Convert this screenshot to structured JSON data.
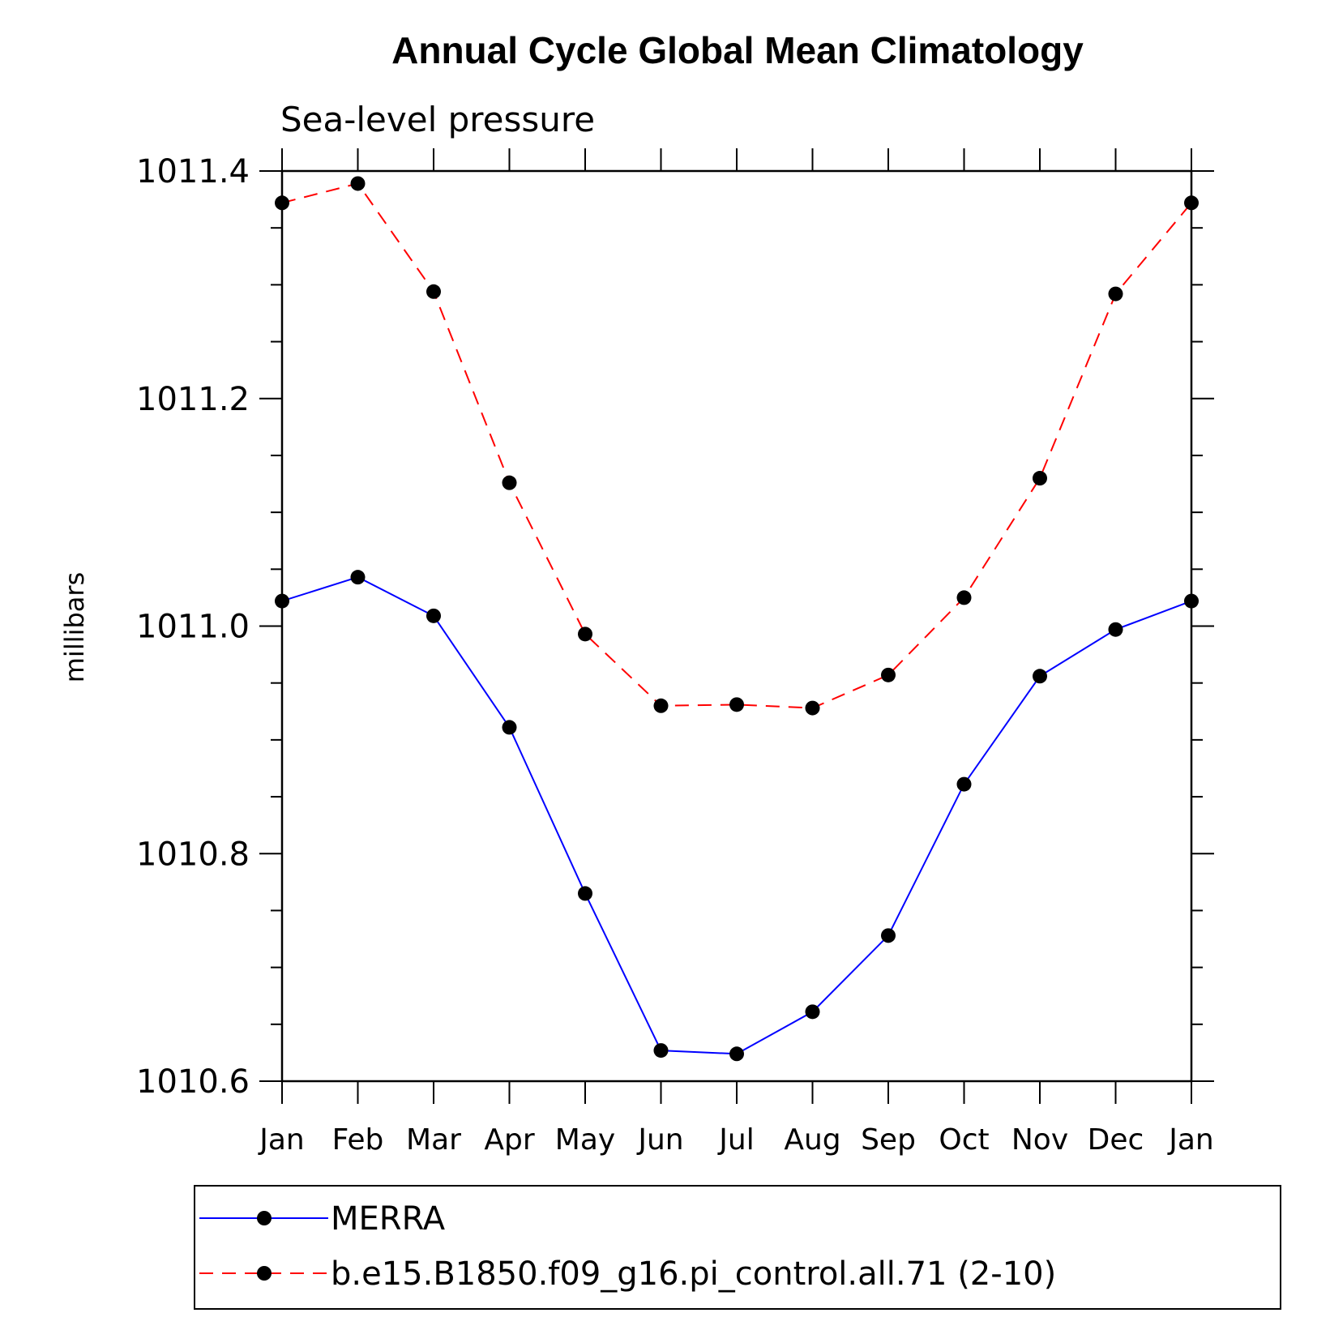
{
  "chart_data": {
    "type": "line",
    "title": "Annual Cycle Global Mean Climatology",
    "subtitle": "Sea-level pressure",
    "xlabel": "",
    "ylabel": "millibars",
    "categories": [
      "Jan",
      "Feb",
      "Mar",
      "Apr",
      "May",
      "Jun",
      "Jul",
      "Aug",
      "Sep",
      "Oct",
      "Nov",
      "Dec",
      "Jan"
    ],
    "ylim": [
      1010.6,
      1011.4
    ],
    "yticks": [
      "1010.6",
      "1010.8",
      "1011.0",
      "1011.2",
      "1011.4"
    ],
    "grid": false,
    "legend_position": "bottom",
    "series": [
      {
        "name": "MERRA",
        "color": "#0000ff",
        "line_style": "solid",
        "marker": "filled-circle",
        "values": [
          1011.022,
          1011.043,
          1011.009,
          1010.911,
          1010.765,
          1010.627,
          1010.624,
          1010.661,
          1010.728,
          1010.861,
          1010.956,
          1010.997,
          1011.022
        ]
      },
      {
        "name": "b.e15.B1850.f09_g16.pi_control.all.71 (2-10)",
        "color": "#ff0000",
        "line_style": "dashed",
        "marker": "filled-circle",
        "values": [
          1011.372,
          1011.389,
          1011.294,
          1011.126,
          1010.993,
          1010.93,
          1010.931,
          1010.928,
          1010.957,
          1011.025,
          1011.13,
          1011.292,
          1011.372
        ]
      }
    ]
  }
}
